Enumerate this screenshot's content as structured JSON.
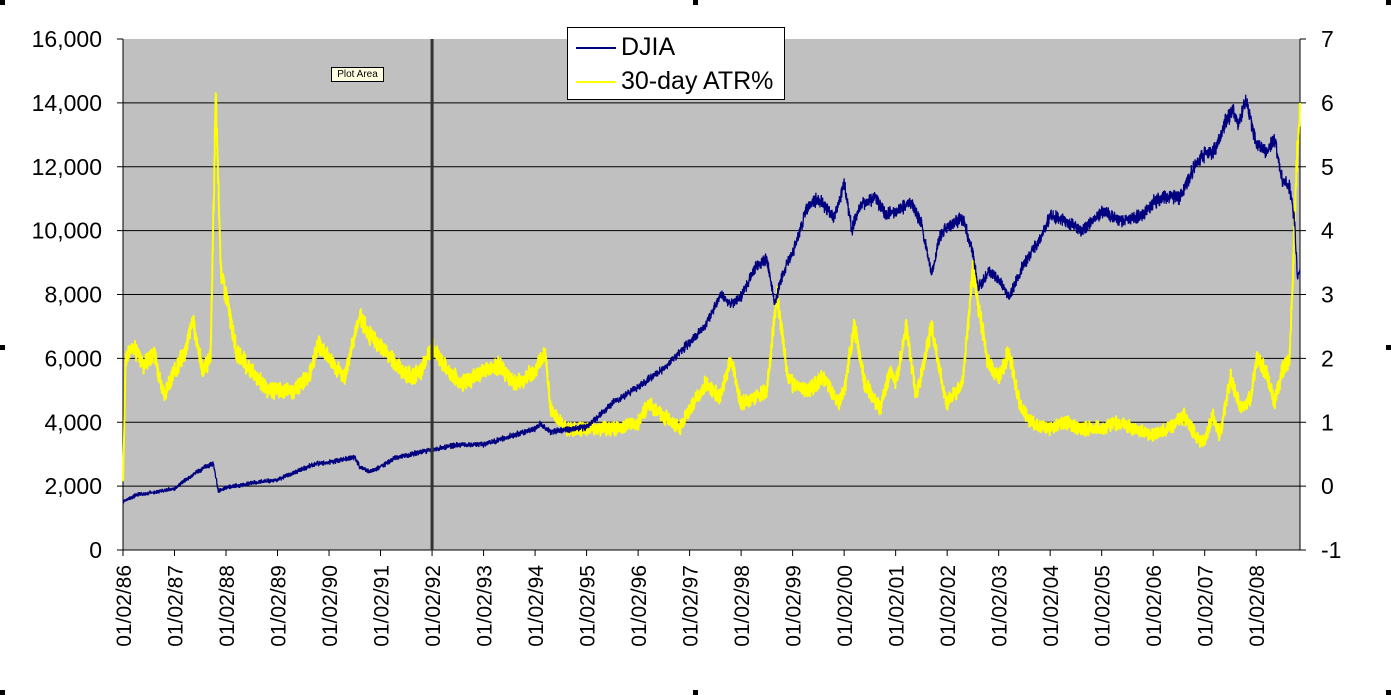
{
  "plot_tooltip": "Plot Area",
  "colors": {
    "plot_bg": "#c0c0c0",
    "djia": "#000080",
    "atr": "#ffff00",
    "gridline": "#000000",
    "cursor_line": "#333333"
  },
  "chart_data": {
    "type": "line",
    "title": "",
    "xlabel": "",
    "ylabel": "",
    "y2label": "",
    "grid": "horizontal",
    "legend_placement": "top-center",
    "ylim": [
      0,
      16000
    ],
    "y_ticks": [
      "0",
      "2,000",
      "4,000",
      "6,000",
      "8,000",
      "10,000",
      "12,000",
      "14,000",
      "16,000"
    ],
    "y2lim": [
      -1,
      7
    ],
    "y2_ticks": [
      "-1",
      "0",
      "1",
      "2",
      "3",
      "4",
      "5",
      "6",
      "7"
    ],
    "x_ticks": [
      {
        "label": "01/02/86",
        "x": 1986.0
      },
      {
        "label": "01/02/87",
        "x": 1987.0
      },
      {
        "label": "01/02/88",
        "x": 1988.0
      },
      {
        "label": "01/02/89",
        "x": 1989.0
      },
      {
        "label": "01/02/90",
        "x": 1990.0
      },
      {
        "label": "01/02/91",
        "x": 1991.0
      },
      {
        "label": "01/02/92",
        "x": 1992.0
      },
      {
        "label": "01/02/93",
        "x": 1993.0
      },
      {
        "label": "01/02/94",
        "x": 1994.0
      },
      {
        "label": "01/02/95",
        "x": 1995.0
      },
      {
        "label": "01/02/96",
        "x": 1996.0
      },
      {
        "label": "01/02/97",
        "x": 1997.0
      },
      {
        "label": "01/02/98",
        "x": 1998.0
      },
      {
        "label": "01/02/99",
        "x": 1999.0
      },
      {
        "label": "01/02/00",
        "x": 2000.0
      },
      {
        "label": "01/02/01",
        "x": 2001.0
      },
      {
        "label": "01/02/02",
        "x": 2002.0
      },
      {
        "label": "01/02/03",
        "x": 2003.0
      },
      {
        "label": "01/02/04",
        "x": 2004.0
      },
      {
        "label": "01/02/05",
        "x": 2005.0
      },
      {
        "label": "01/02/06",
        "x": 2006.0
      },
      {
        "label": "01/02/07",
        "x": 2007.0
      },
      {
        "label": "01/02/08",
        "x": 2008.0
      }
    ],
    "xlim": [
      1986.0,
      2008.85
    ],
    "vertical_marker_x": 1992.0,
    "series": [
      {
        "name": "DJIA",
        "axis": "left",
        "color": "#000080",
        "points": [
          [
            1986.0,
            1520
          ],
          [
            1986.3,
            1750
          ],
          [
            1986.6,
            1800
          ],
          [
            1987.0,
            1920
          ],
          [
            1987.3,
            2300
          ],
          [
            1987.6,
            2600
          ],
          [
            1987.75,
            2700
          ],
          [
            1987.8,
            2300
          ],
          [
            1987.85,
            1850
          ],
          [
            1988.0,
            1950
          ],
          [
            1988.5,
            2100
          ],
          [
            1989.0,
            2200
          ],
          [
            1989.5,
            2550
          ],
          [
            1989.75,
            2700
          ],
          [
            1990.0,
            2750
          ],
          [
            1990.5,
            2900
          ],
          [
            1990.6,
            2600
          ],
          [
            1990.8,
            2450
          ],
          [
            1991.0,
            2600
          ],
          [
            1991.3,
            2900
          ],
          [
            1991.6,
            3000
          ],
          [
            1992.0,
            3150
          ],
          [
            1992.5,
            3300
          ],
          [
            1993.0,
            3300
          ],
          [
            1993.5,
            3550
          ],
          [
            1994.0,
            3800
          ],
          [
            1994.1,
            3950
          ],
          [
            1994.3,
            3700
          ],
          [
            1994.8,
            3800
          ],
          [
            1995.0,
            3850
          ],
          [
            1995.5,
            4600
          ],
          [
            1996.0,
            5100
          ],
          [
            1996.5,
            5700
          ],
          [
            1997.0,
            6500
          ],
          [
            1997.3,
            7000
          ],
          [
            1997.6,
            8000
          ],
          [
            1997.8,
            7700
          ],
          [
            1998.0,
            7950
          ],
          [
            1998.3,
            8900
          ],
          [
            1998.5,
            9100
          ],
          [
            1998.65,
            7700
          ],
          [
            1998.8,
            8600
          ],
          [
            1999.0,
            9300
          ],
          [
            1999.3,
            10800
          ],
          [
            1999.5,
            11000
          ],
          [
            1999.8,
            10400
          ],
          [
            2000.0,
            11500
          ],
          [
            2000.15,
            10000
          ],
          [
            2000.3,
            10800
          ],
          [
            2000.6,
            11000
          ],
          [
            2000.8,
            10500
          ],
          [
            2001.0,
            10600
          ],
          [
            2001.3,
            10900
          ],
          [
            2001.5,
            10200
          ],
          [
            2001.7,
            8600
          ],
          [
            2001.85,
            9800
          ],
          [
            2002.0,
            10100
          ],
          [
            2002.3,
            10400
          ],
          [
            2002.5,
            9300
          ],
          [
            2002.6,
            8200
          ],
          [
            2002.8,
            8700
          ],
          [
            2003.0,
            8500
          ],
          [
            2003.2,
            7900
          ],
          [
            2003.5,
            9000
          ],
          [
            2003.8,
            9700
          ],
          [
            2004.0,
            10500
          ],
          [
            2004.3,
            10300
          ],
          [
            2004.6,
            10000
          ],
          [
            2005.0,
            10600
          ],
          [
            2005.4,
            10300
          ],
          [
            2005.8,
            10500
          ],
          [
            2006.0,
            10900
          ],
          [
            2006.3,
            11100
          ],
          [
            2006.5,
            11000
          ],
          [
            2006.8,
            12000
          ],
          [
            2007.0,
            12400
          ],
          [
            2007.2,
            12500
          ],
          [
            2007.4,
            13400
          ],
          [
            2007.55,
            13800
          ],
          [
            2007.65,
            13300
          ],
          [
            2007.8,
            14100
          ],
          [
            2007.9,
            13400
          ],
          [
            2008.0,
            12800
          ],
          [
            2008.2,
            12400
          ],
          [
            2008.35,
            12900
          ],
          [
            2008.5,
            11600
          ],
          [
            2008.65,
            11400
          ],
          [
            2008.75,
            10200
          ],
          [
            2008.8,
            8500
          ],
          [
            2008.85,
            8800
          ]
        ]
      },
      {
        "name": "30-day ATR%",
        "axis": "right",
        "color": "#ffff00",
        "points": [
          [
            1986.0,
            0.0
          ],
          [
            1986.05,
            2.0
          ],
          [
            1986.2,
            2.2
          ],
          [
            1986.4,
            1.9
          ],
          [
            1986.6,
            2.1
          ],
          [
            1986.8,
            1.4
          ],
          [
            1987.0,
            1.8
          ],
          [
            1987.2,
            2.1
          ],
          [
            1987.35,
            2.6
          ],
          [
            1987.55,
            1.8
          ],
          [
            1987.7,
            2.0
          ],
          [
            1987.8,
            6.1
          ],
          [
            1987.9,
            3.4
          ],
          [
            1988.0,
            3.0
          ],
          [
            1988.2,
            2.1
          ],
          [
            1988.5,
            1.8
          ],
          [
            1988.8,
            1.5
          ],
          [
            1989.0,
            1.5
          ],
          [
            1989.3,
            1.5
          ],
          [
            1989.6,
            1.7
          ],
          [
            1989.8,
            2.2
          ],
          [
            1990.0,
            2.0
          ],
          [
            1990.3,
            1.7
          ],
          [
            1990.6,
            2.7
          ],
          [
            1990.75,
            2.4
          ],
          [
            1991.0,
            2.2
          ],
          [
            1991.3,
            1.9
          ],
          [
            1991.6,
            1.7
          ],
          [
            1991.8,
            1.8
          ],
          [
            1992.0,
            2.2
          ],
          [
            1992.3,
            1.8
          ],
          [
            1992.6,
            1.6
          ],
          [
            1993.0,
            1.8
          ],
          [
            1993.3,
            1.9
          ],
          [
            1993.6,
            1.6
          ],
          [
            1994.0,
            1.8
          ],
          [
            1994.2,
            2.1
          ],
          [
            1994.3,
            1.2
          ],
          [
            1994.6,
            0.9
          ],
          [
            1995.0,
            0.9
          ],
          [
            1995.3,
            0.9
          ],
          [
            1995.6,
            0.9
          ],
          [
            1996.0,
            1.0
          ],
          [
            1996.2,
            1.3
          ],
          [
            1996.5,
            1.1
          ],
          [
            1996.8,
            0.9
          ],
          [
            1997.0,
            1.2
          ],
          [
            1997.3,
            1.6
          ],
          [
            1997.6,
            1.4
          ],
          [
            1997.8,
            2.0
          ],
          [
            1998.0,
            1.3
          ],
          [
            1998.3,
            1.4
          ],
          [
            1998.5,
            1.5
          ],
          [
            1998.7,
            3.0
          ],
          [
            1998.9,
            1.7
          ],
          [
            1999.0,
            1.6
          ],
          [
            1999.3,
            1.5
          ],
          [
            1999.6,
            1.7
          ],
          [
            1999.9,
            1.3
          ],
          [
            2000.0,
            1.5
          ],
          [
            2000.2,
            2.5
          ],
          [
            2000.4,
            1.6
          ],
          [
            2000.7,
            1.2
          ],
          [
            2000.9,
            1.8
          ],
          [
            2001.0,
            1.6
          ],
          [
            2001.2,
            2.5
          ],
          [
            2001.4,
            1.4
          ],
          [
            2001.7,
            2.5
          ],
          [
            2001.9,
            1.6
          ],
          [
            2002.0,
            1.3
          ],
          [
            2002.3,
            1.6
          ],
          [
            2002.5,
            3.4
          ],
          [
            2002.65,
            2.6
          ],
          [
            2002.8,
            1.9
          ],
          [
            2003.0,
            1.7
          ],
          [
            2003.2,
            2.1
          ],
          [
            2003.4,
            1.3
          ],
          [
            2003.6,
            1.0
          ],
          [
            2004.0,
            0.9
          ],
          [
            2004.3,
            1.0
          ],
          [
            2004.6,
            0.9
          ],
          [
            2005.0,
            0.9
          ],
          [
            2005.3,
            1.0
          ],
          [
            2005.6,
            0.9
          ],
          [
            2006.0,
            0.8
          ],
          [
            2006.3,
            0.9
          ],
          [
            2006.6,
            1.1
          ],
          [
            2006.9,
            0.7
          ],
          [
            2007.0,
            0.7
          ],
          [
            2007.15,
            1.1
          ],
          [
            2007.3,
            0.8
          ],
          [
            2007.5,
            1.7
          ],
          [
            2007.7,
            1.2
          ],
          [
            2007.9,
            1.4
          ],
          [
            2008.0,
            2.0
          ],
          [
            2008.2,
            1.8
          ],
          [
            2008.35,
            1.3
          ],
          [
            2008.5,
            1.8
          ],
          [
            2008.65,
            2.0
          ],
          [
            2008.72,
            3.5
          ],
          [
            2008.78,
            5.0
          ],
          [
            2008.85,
            6.0
          ]
        ]
      }
    ]
  }
}
